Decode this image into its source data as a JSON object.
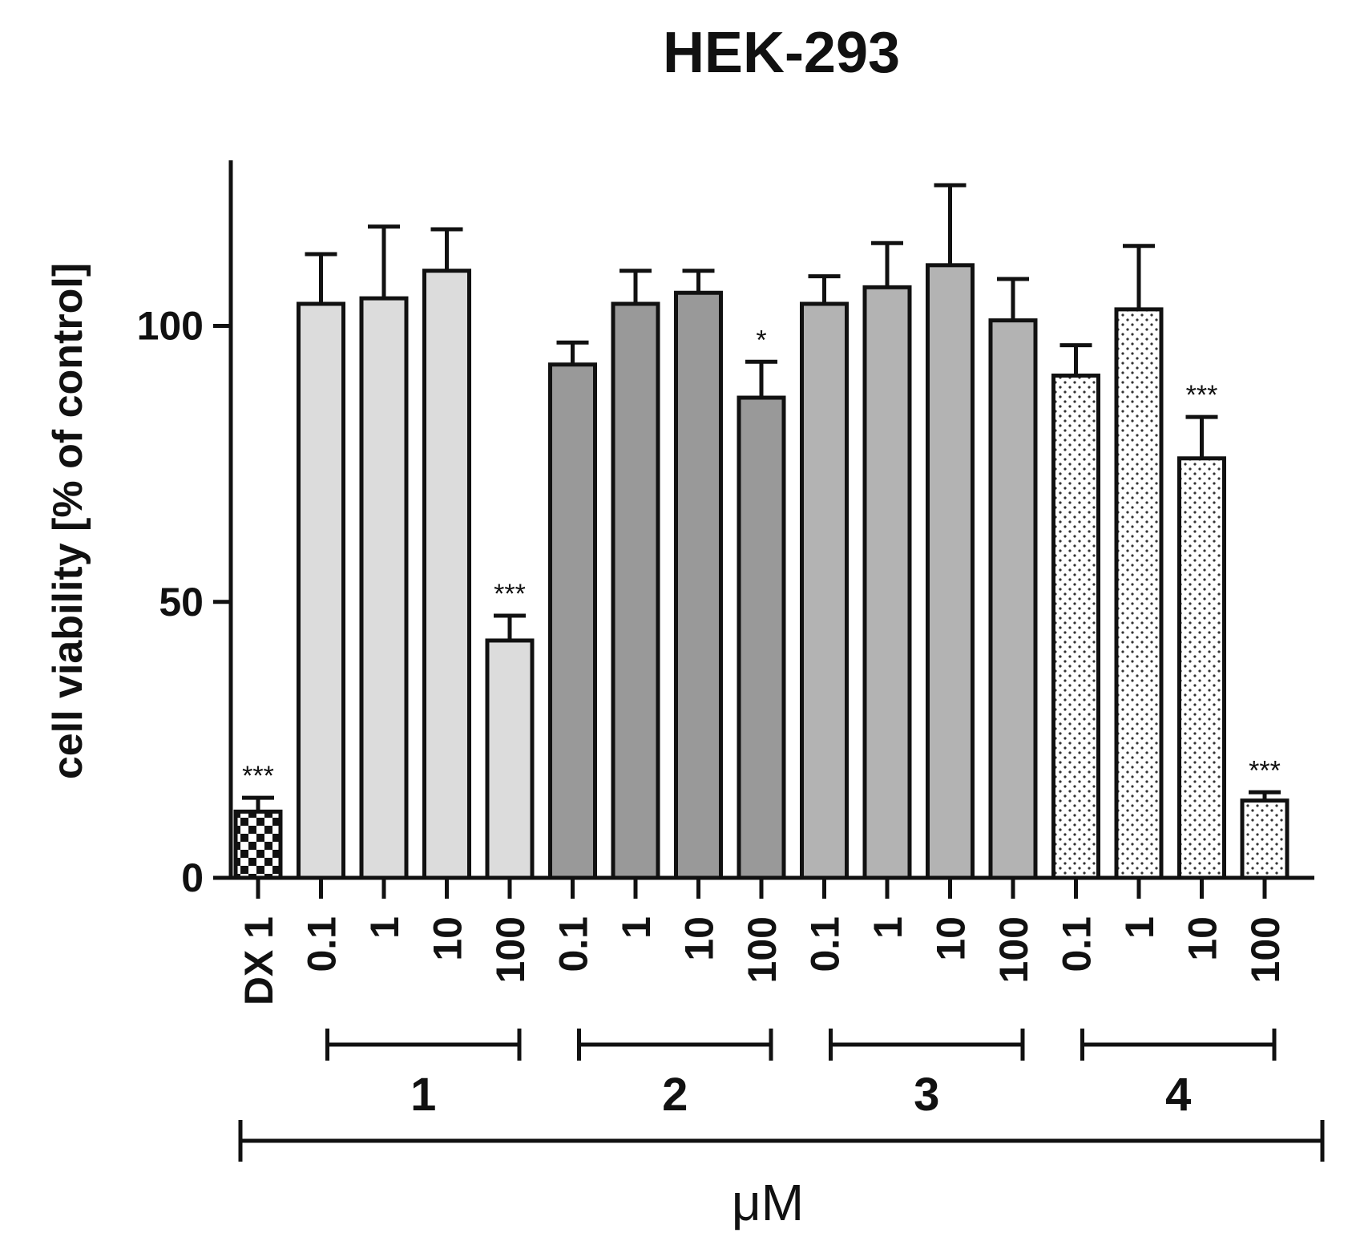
{
  "chart_data": {
    "type": "bar",
    "title": "HEK-293",
    "ylabel": "cell viability [% of control]",
    "unit_label": "μM",
    "ylim": [
      0,
      130
    ],
    "yticks": [
      0,
      50,
      100
    ],
    "categories": [
      "DX 1",
      "0.1",
      "1",
      "10",
      "100",
      "0.1",
      "1",
      "10",
      "100",
      "0.1",
      "1",
      "10",
      "100",
      "0.1",
      "1",
      "10",
      "100"
    ],
    "values": [
      12,
      104,
      105,
      110,
      43,
      93,
      104,
      106,
      87,
      104,
      107,
      111,
      101,
      91,
      103,
      76,
      14
    ],
    "errors": [
      2.5,
      9,
      13,
      7.5,
      4.5,
      4,
      6,
      4,
      6.5,
      5,
      8,
      14.5,
      7.5,
      5.5,
      11.5,
      7.5,
      1.5
    ],
    "significance": [
      "***",
      "",
      "",
      "",
      "***",
      "",
      "",
      "",
      "*",
      "",
      "",
      "",
      "",
      "",
      "",
      "***",
      "***"
    ],
    "groups": [
      {
        "label": "1",
        "start": 1,
        "end": 4
      },
      {
        "label": "2",
        "start": 5,
        "end": 8
      },
      {
        "label": "3",
        "start": 9,
        "end": 12
      },
      {
        "label": "4",
        "start": 13,
        "end": 16
      }
    ],
    "colors": {
      "control": "checker",
      "group1": "#dcdcdc",
      "group2": "#999999",
      "group3": "#b3b3b3",
      "group4": "dotted"
    },
    "grid": false,
    "legend": "none"
  }
}
